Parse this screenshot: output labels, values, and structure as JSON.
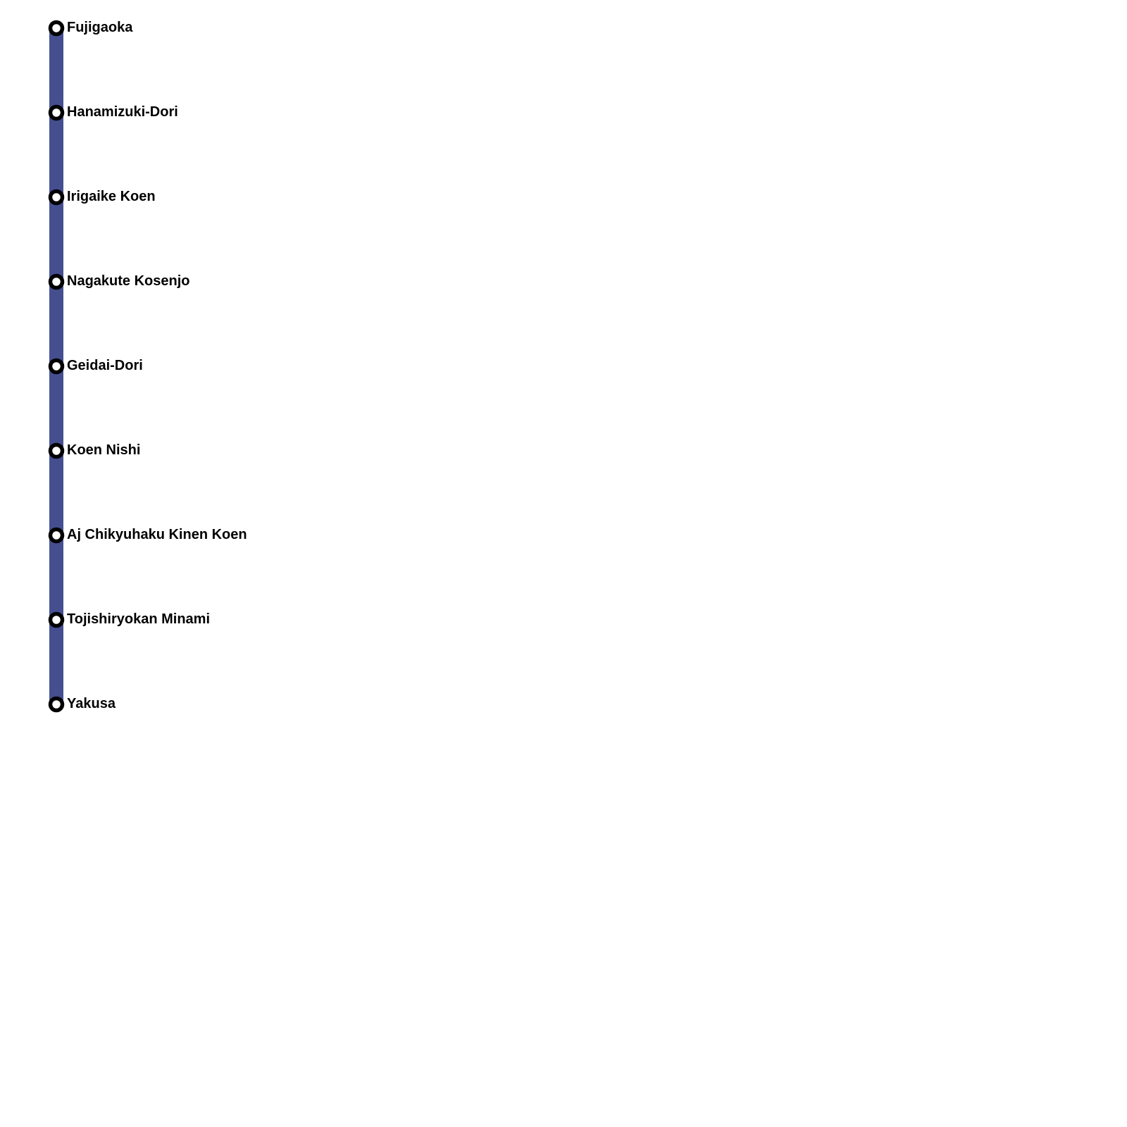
{
  "line": {
    "color": "#454f90",
    "stations": [
      {
        "name": "Fujigaoka"
      },
      {
        "name": "Hanamizuki-Dori"
      },
      {
        "name": "Irigaike Koen"
      },
      {
        "name": "Nagakute Kosenjo"
      },
      {
        "name": "Geidai-Dori"
      },
      {
        "name": "Koen Nishi"
      },
      {
        "name": "Aj Chikyuhaku Kinen Koen"
      },
      {
        "name": "Tojishiryokan Minami"
      },
      {
        "name": "Yakusa"
      }
    ]
  }
}
